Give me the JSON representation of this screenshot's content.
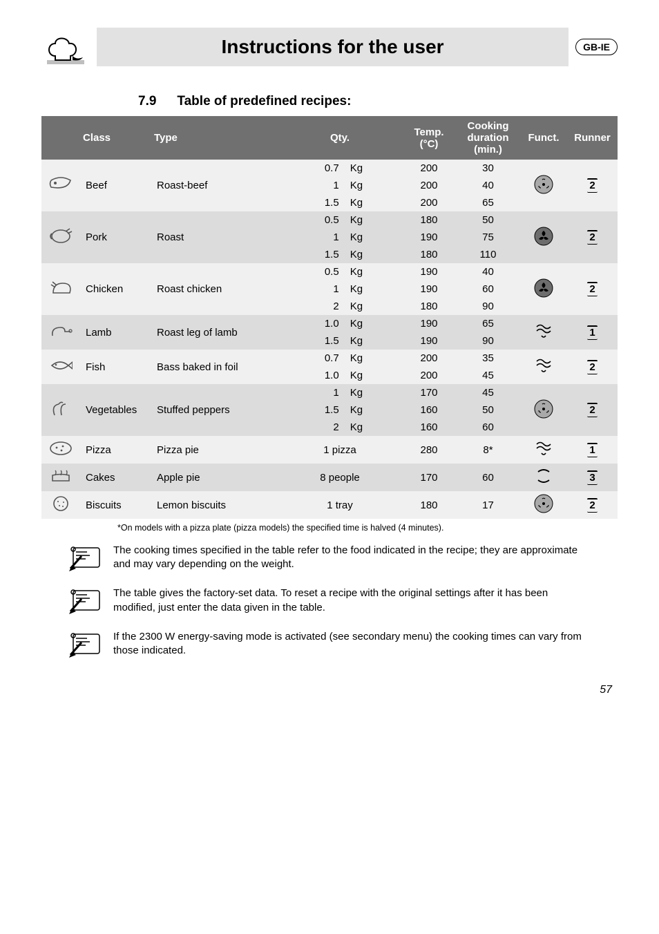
{
  "header": {
    "title": "Instructions for the user",
    "badge": "GB-IE"
  },
  "section": {
    "number": "7.9",
    "title": "Table of predefined recipes:"
  },
  "table": {
    "head": {
      "class": "Class",
      "type": "Type",
      "qty": "Qty.",
      "temp": "Temp. (°C)",
      "cook": "Cooking duration (min.)",
      "funct": "Funct.",
      "runner": "Runner"
    },
    "groups": [
      {
        "zebra": "light",
        "class": "Beef",
        "type": "Roast-beef",
        "icon_svg": "beef",
        "funct_svg": "fan-grill",
        "runner": "2",
        "rows": [
          {
            "qv": "0.7",
            "qu": "Kg",
            "temp": "200",
            "dur": "30"
          },
          {
            "qv": "1",
            "qu": "Kg",
            "temp": "200",
            "dur": "40"
          },
          {
            "qv": "1.5",
            "qu": "Kg",
            "temp": "200",
            "dur": "65"
          }
        ]
      },
      {
        "zebra": "dark",
        "class": "Pork",
        "type": "Roast",
        "icon_svg": "pork",
        "funct_svg": "fan-solid",
        "runner": "2",
        "rows": [
          {
            "qv": "0.5",
            "qu": "Kg",
            "temp": "180",
            "dur": "50"
          },
          {
            "qv": "1",
            "qu": "Kg",
            "temp": "190",
            "dur": "75"
          },
          {
            "qv": "1.5",
            "qu": "Kg",
            "temp": "180",
            "dur": "110"
          }
        ]
      },
      {
        "zebra": "light",
        "class": "Chicken",
        "type": "Roast chicken",
        "icon_svg": "chicken",
        "funct_svg": "fan-solid",
        "runner": "2",
        "rows": [
          {
            "qv": "0.5",
            "qu": "Kg",
            "temp": "190",
            "dur": "40"
          },
          {
            "qv": "1",
            "qu": "Kg",
            "temp": "190",
            "dur": "60"
          },
          {
            "qv": "2",
            "qu": "Kg",
            "temp": "180",
            "dur": "90"
          }
        ]
      },
      {
        "zebra": "dark",
        "class": "Lamb",
        "type": "Roast leg of lamb",
        "icon_svg": "lamb",
        "funct_svg": "waves",
        "runner": "1",
        "rows": [
          {
            "qv": "1.0",
            "qu": "Kg",
            "temp": "190",
            "dur": "65"
          },
          {
            "qv": "1.5",
            "qu": "Kg",
            "temp": "190",
            "dur": "90"
          }
        ]
      },
      {
        "zebra": "light",
        "class": "Fish",
        "type": "Bass baked in foil",
        "icon_svg": "fish",
        "funct_svg": "waves",
        "runner": "2",
        "rows": [
          {
            "qv": "0.7",
            "qu": "Kg",
            "temp": "200",
            "dur": "35"
          },
          {
            "qv": "1.0",
            "qu": "Kg",
            "temp": "200",
            "dur": "45"
          }
        ]
      },
      {
        "zebra": "dark",
        "class": "Vegetables",
        "type": "Stuffed peppers",
        "icon_svg": "veg",
        "funct_svg": "fan-grill",
        "runner": "2",
        "rows": [
          {
            "qv": "1",
            "qu": "Kg",
            "temp": "170",
            "dur": "45"
          },
          {
            "qv": "1.5",
            "qu": "Kg",
            "temp": "160",
            "dur": "50"
          },
          {
            "qv": "2",
            "qu": "Kg",
            "temp": "160",
            "dur": "60"
          }
        ]
      },
      {
        "zebra": "light",
        "class": "Pizza",
        "type": "Pizza pie",
        "icon_svg": "pizza",
        "funct_svg": "waves",
        "runner": "1",
        "rows": [
          {
            "qv": "1 pizza",
            "qu": "",
            "temp": "280",
            "dur": "8*",
            "wide": true
          }
        ]
      },
      {
        "zebra": "dark",
        "class": "Cakes",
        "type": "Apple pie",
        "icon_svg": "cake",
        "funct_svg": "topbottom",
        "runner": "3",
        "rows": [
          {
            "qv": "8 people",
            "qu": "",
            "temp": "170",
            "dur": "60",
            "wide": true
          }
        ]
      },
      {
        "zebra": "light",
        "class": "Biscuits",
        "type": "Lemon biscuits",
        "icon_svg": "biscuit",
        "funct_svg": "fan-grill",
        "runner": "2",
        "rows": [
          {
            "qv": "1 tray",
            "qu": "",
            "temp": "180",
            "dur": "17",
            "wide": true
          }
        ]
      }
    ]
  },
  "footnote": "*On models with a pizza plate (pizza models) the specified time is halved (4 minutes).",
  "notes": [
    "The cooking times specified in the table refer to the food indicated in the recipe; they are approximate and may vary depending on the weight.",
    "The table gives the factory-set data. To reset a recipe with the original settings after it has been modified, just enter the data given in the table.",
    "If the 2300 W energy-saving mode is activated (see secondary menu) the cooking times can vary from those indicated."
  ],
  "page_number": "57"
}
